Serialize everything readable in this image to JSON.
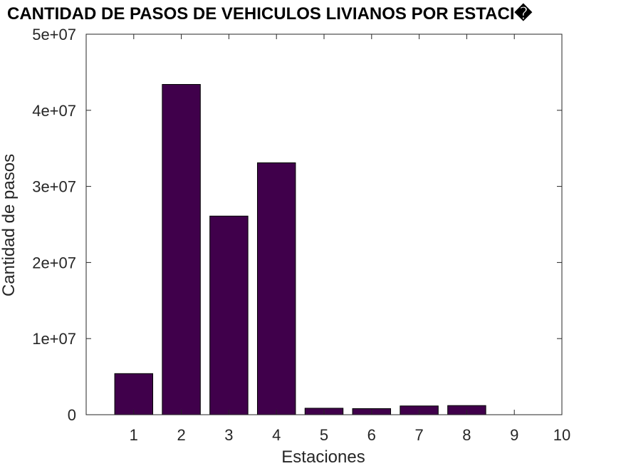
{
  "chart_data": {
    "type": "bar",
    "title": "CANTIDAD DE PASOS DE VEHICULOS LIVIANOS POR ESTACI�",
    "xlabel": "Estaciones",
    "ylabel": "Cantidad de pasos",
    "categories": [
      "1",
      "2",
      "3",
      "4",
      "5",
      "6",
      "7",
      "8",
      "9",
      "10"
    ],
    "values": [
      5400000,
      43400000,
      26100000,
      33100000,
      850000,
      800000,
      1150000,
      1200000,
      0,
      0
    ],
    "xlim": [
      0,
      10
    ],
    "ylim": [
      0,
      50000000
    ],
    "yticks": [
      0,
      10000000,
      20000000,
      30000000,
      40000000,
      50000000
    ],
    "ytick_labels": [
      "0",
      "1e+07",
      "2e+07",
      "3e+07",
      "4e+07",
      "5e+07"
    ],
    "xticks": [
      1,
      2,
      3,
      4,
      5,
      6,
      7,
      8,
      9,
      10
    ],
    "bar_color": "#40004b",
    "grid": false,
    "legend": "none"
  }
}
